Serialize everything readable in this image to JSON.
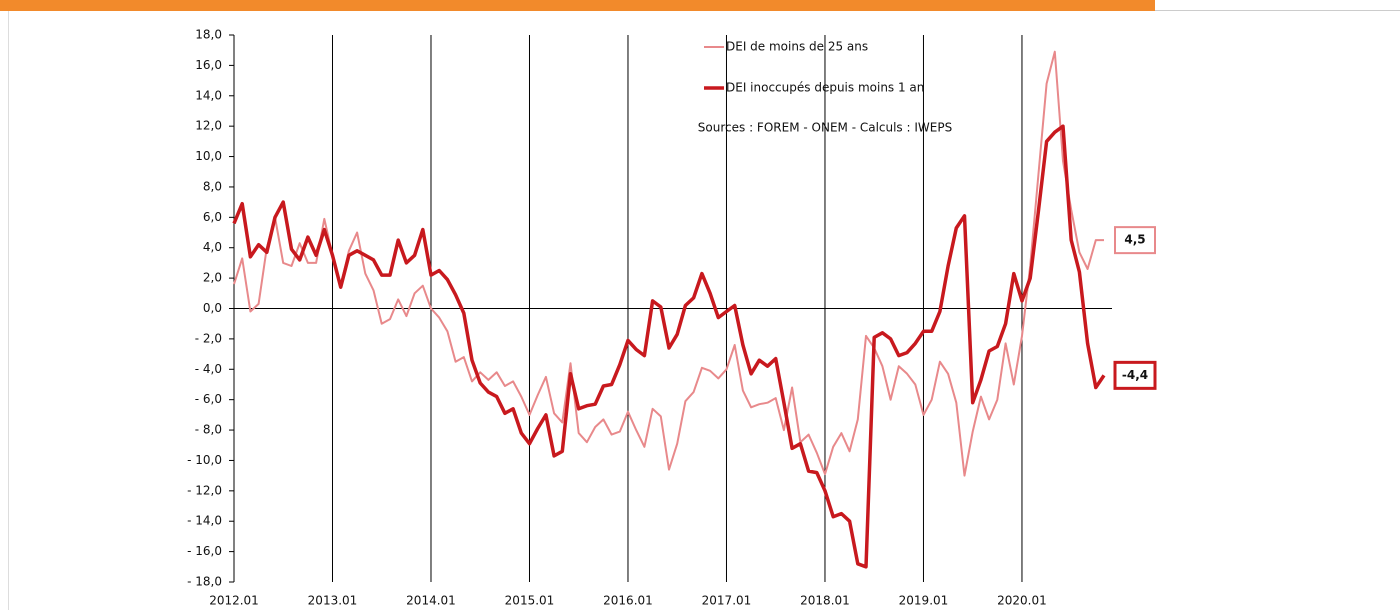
{
  "chart_data": {
    "type": "line",
    "categories": [
      "2012.01",
      null,
      null,
      null,
      null,
      null,
      null,
      null,
      null,
      null,
      null,
      null,
      "2013.01",
      null,
      null,
      null,
      null,
      null,
      null,
      null,
      null,
      null,
      null,
      null,
      "2014.01",
      null,
      null,
      null,
      null,
      null,
      null,
      null,
      null,
      null,
      null,
      null,
      "2015.01",
      null,
      null,
      null,
      null,
      null,
      null,
      null,
      null,
      null,
      null,
      null,
      "2016.01",
      null,
      null,
      null,
      null,
      null,
      null,
      null,
      null,
      null,
      null,
      null,
      "2017.01",
      null,
      null,
      null,
      null,
      null,
      null,
      null,
      null,
      null,
      null,
      null,
      "2018.01",
      null,
      null,
      null,
      null,
      null,
      null,
      null,
      null,
      null,
      null,
      null,
      "2019.01",
      null,
      null,
      null,
      null,
      null,
      null,
      null,
      null,
      null,
      null,
      null,
      "2020.01",
      null,
      null,
      null,
      null,
      null,
      null,
      null,
      null,
      null,
      null
    ],
    "series": [
      {
        "name": "DEI de moins de 25 ans",
        "color": "#e8898b",
        "width": 2,
        "last_label": "4,5",
        "values": [
          1.6,
          3.3,
          -0.2,
          0.3,
          4.0,
          6.0,
          3.0,
          2.8,
          4.3,
          3.0,
          3.0,
          5.9,
          3.5,
          1.5,
          3.8,
          5.0,
          2.3,
          1.2,
          -1.0,
          -0.7,
          0.6,
          -0.5,
          1.0,
          1.5,
          0.0,
          -0.6,
          -1.5,
          -3.5,
          -3.2,
          -4.8,
          -4.2,
          -4.7,
          -4.2,
          -5.1,
          -4.8,
          -5.8,
          -7.0,
          -5.7,
          -4.5,
          -6.9,
          -7.5,
          -3.6,
          -8.2,
          -8.8,
          -7.8,
          -7.3,
          -8.3,
          -8.1,
          -6.8,
          -8.0,
          -9.1,
          -6.6,
          -7.1,
          -10.6,
          -8.9,
          -6.1,
          -5.5,
          -3.9,
          -4.1,
          -4.6,
          -4.0,
          -2.4,
          -5.4,
          -6.5,
          -6.3,
          -6.2,
          -5.9,
          -8.0,
          -5.2,
          -8.8,
          -8.3,
          -9.5,
          -10.9,
          -9.1,
          -8.2,
          -9.4,
          -7.3,
          -1.8,
          -2.6,
          -3.8,
          -6.0,
          -3.8,
          -4.3,
          -5.0,
          -7.0,
          -6.0,
          -3.5,
          -4.3,
          -6.2,
          -11.0,
          -8.1,
          -5.8,
          -7.3,
          -6.0,
          -2.3,
          -5.0,
          -1.8,
          2.8,
          8.8,
          14.8,
          16.9,
          9.7,
          6.5,
          3.7,
          2.6,
          4.5,
          4.5
        ]
      },
      {
        "name": "DEI inoccupés depuis moins 1 an",
        "color": "#c8191e",
        "width": 3.5,
        "last_label": "-4,4",
        "values": [
          5.6,
          6.9,
          3.4,
          4.2,
          3.7,
          6.0,
          7.0,
          3.9,
          3.2,
          4.7,
          3.5,
          5.2,
          3.5,
          1.4,
          3.5,
          3.8,
          3.5,
          3.2,
          2.2,
          2.2,
          4.5,
          3.0,
          3.5,
          5.2,
          2.2,
          2.5,
          1.9,
          0.9,
          -0.3,
          -3.4,
          -4.9,
          -5.5,
          -5.8,
          -6.9,
          -6.6,
          -8.2,
          -8.9,
          -7.9,
          -7.0,
          -9.7,
          -9.4,
          -4.3,
          -6.6,
          -6.4,
          -6.3,
          -5.1,
          -5.0,
          -3.7,
          -2.1,
          -2.7,
          -3.1,
          0.5,
          0.1,
          -2.6,
          -1.7,
          0.2,
          0.7,
          2.3,
          1.0,
          -0.6,
          -0.2,
          0.2,
          -2.4,
          -4.3,
          -3.4,
          -3.8,
          -3.3,
          -6.2,
          -9.2,
          -8.9,
          -10.7,
          -10.8,
          -12.0,
          -13.7,
          -13.5,
          -14.0,
          -16.8,
          -17.0,
          -1.9,
          -1.6,
          -2.0,
          -3.1,
          -2.9,
          -2.3,
          -1.5,
          -1.5,
          -0.2,
          2.8,
          5.3,
          6.1,
          -6.2,
          -4.7,
          -2.8,
          -2.5,
          -1.0,
          2.3,
          0.5,
          2.0,
          6.4,
          11.0,
          11.6,
          12.0,
          4.5,
          2.4,
          -2.3,
          -5.2,
          -4.4
        ]
      }
    ],
    "annotation": "Sources : FOREM - ONEM - Calculs : IWEPS",
    "ylim": [
      -18,
      18
    ],
    "yticks": [
      {
        "value": -18,
        "label": "- 18,0"
      },
      {
        "value": -16,
        "label": "- 16,0"
      },
      {
        "value": -14,
        "label": "- 14,0"
      },
      {
        "value": -12,
        "label": "- 12,0"
      },
      {
        "value": -10,
        "label": "- 10,0"
      },
      {
        "value": -8,
        "label": "- 8,0"
      },
      {
        "value": -6,
        "label": "- 6,0"
      },
      {
        "value": -4,
        "label": "- 4,0"
      },
      {
        "value": -2,
        "label": "- 2,0"
      },
      {
        "value": 0,
        "label": "0,0"
      },
      {
        "value": 2,
        "label": "2,0"
      },
      {
        "value": 4,
        "label": "4,0"
      },
      {
        "value": 6,
        "label": "6,0"
      },
      {
        "value": 8,
        "label": "8,0"
      },
      {
        "value": 10,
        "label": "10,0"
      },
      {
        "value": 12,
        "label": "12,0"
      },
      {
        "value": 14,
        "label": "14,0"
      },
      {
        "value": 16,
        "label": "16,0"
      },
      {
        "value": 18,
        "label": "18,0"
      }
    ],
    "xgrid": true
  }
}
